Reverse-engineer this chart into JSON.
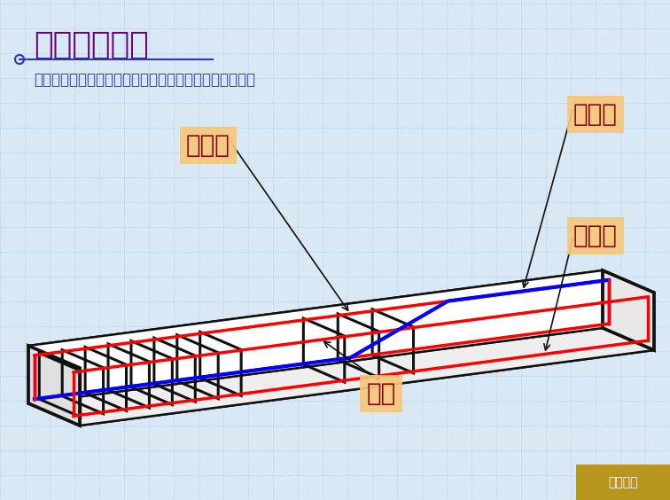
{
  "title": "钢筋混凝土梁",
  "subtitle": "钢筋混凝土梁一般采用立面图和断面图表示钢筋配置情况",
  "bg_color": "#d8e8f4",
  "grid_color": "#a0bcd8",
  "title_color": "#6b0080",
  "subtitle_color": "#3333bb",
  "label_bg": "#f5c87a",
  "label_color": "#880000",
  "labels": {
    "jiaji": "架立筋",
    "wanqi": "弯起筋",
    "shouli": "受力筋",
    "gu": "箍筋"
  },
  "nav_color": "#b8961e",
  "nav_text": "返回目录"
}
